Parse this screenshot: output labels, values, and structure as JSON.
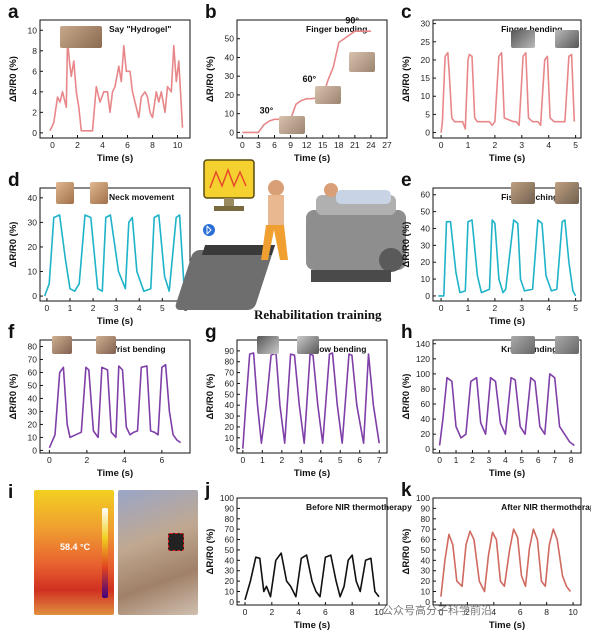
{
  "center": {
    "title": "Rehabilitation training"
  },
  "thermal": {
    "temperature": "58.4 °C"
  },
  "watermark": "公众号高分子科学前沿",
  "colors": {
    "red": "#e8878a",
    "teal": "#1fb3c9",
    "purple": "#7f3fa8",
    "black": "#111111",
    "brick": "#d0695f"
  },
  "chart_data": [
    {
      "id": "a",
      "letter": "a",
      "type": "line",
      "color": "red",
      "title": "Say \"Hydrogel\"",
      "xlabel": "Time (s)",
      "ylabel": "ΔR/R0 (%)",
      "xlim": [
        -1,
        11
      ],
      "ylim": [
        -0.5,
        11
      ],
      "xticks": [
        0,
        2,
        4,
        6,
        8,
        10
      ],
      "yticks": [
        0,
        2,
        4,
        6,
        8,
        10
      ],
      "x": [
        -0.2,
        0.1,
        0.4,
        0.6,
        0.8,
        1.1,
        1.2,
        1.35,
        1.5,
        1.7,
        1.9,
        2.1,
        2.3,
        3.2,
        3.5,
        3.8,
        4.1,
        4.4,
        4.6,
        4.8,
        5.0,
        5.3,
        5.5,
        5.7,
        5.9,
        6.2,
        6.4,
        6.6,
        6.9,
        7.1,
        7.4,
        7.6,
        7.8,
        8.0,
        8.3,
        8.5,
        8.7,
        9.0,
        9.2,
        9.5,
        9.7,
        9.9,
        10.1,
        10.4
      ],
      "y": [
        0.2,
        1,
        3.5,
        3,
        4,
        2.5,
        9,
        7,
        5.5,
        7,
        4,
        2.5,
        0.2,
        0.2,
        4.5,
        3,
        4,
        4,
        2,
        4,
        4.5,
        6.5,
        5,
        8.5,
        6,
        6,
        4,
        3,
        1.5,
        3.5,
        4,
        3.5,
        2,
        1.5,
        4,
        3,
        4,
        2,
        4.5,
        4,
        8.5,
        5,
        7,
        0.5
      ]
    },
    {
      "id": "b",
      "letter": "b",
      "type": "line",
      "color": "red",
      "title": "Finger bending",
      "xlabel": "Time (s)",
      "ylabel": "ΔR/R0 (%)",
      "xlim": [
        -1,
        27
      ],
      "ylim": [
        -3,
        60
      ],
      "xticks": [
        0,
        3,
        6,
        9,
        12,
        15,
        18,
        21,
        24,
        27
      ],
      "yticks": [
        0,
        10,
        20,
        30,
        40,
        50
      ],
      "x": [
        0,
        3,
        4,
        5,
        6,
        9,
        10,
        11,
        12,
        13,
        15,
        16,
        17,
        18,
        20,
        21,
        24
      ],
      "y": [
        0,
        0,
        4,
        6,
        7,
        7,
        15,
        17,
        18,
        18,
        19,
        28,
        35,
        48,
        52,
        54,
        54
      ],
      "annotations": [
        "30°",
        "60°",
        "90°"
      ]
    },
    {
      "id": "c",
      "letter": "c",
      "type": "line",
      "color": "red",
      "title": "Finger bending",
      "xlabel": "Time (s)",
      "ylabel": "ΔR/R0 (%)",
      "xlim": [
        -0.3,
        5.2
      ],
      "ylim": [
        -1.5,
        31
      ],
      "xticks": [
        0,
        1,
        2,
        3,
        4,
        5
      ],
      "yticks": [
        0,
        5,
        10,
        15,
        20,
        25,
        30
      ],
      "x": [
        0,
        0.05,
        0.15,
        0.25,
        0.3,
        0.4,
        0.5,
        0.6,
        0.8,
        0.9,
        1.0,
        1.05,
        1.15,
        1.25,
        1.35,
        1.6,
        1.8,
        1.9,
        2.0,
        2.15,
        2.25,
        2.35,
        2.7,
        2.8,
        2.9,
        3.05,
        3.15,
        3.25,
        3.4,
        3.6,
        3.7,
        3.85,
        3.95,
        4.05,
        4.2,
        4.4,
        4.6,
        4.75,
        4.85,
        4.95
      ],
      "y": [
        0,
        3,
        21,
        22,
        17,
        4,
        3,
        3,
        3,
        1,
        20,
        21.5,
        21,
        4,
        3,
        3,
        3,
        2,
        3,
        21,
        22,
        4,
        3,
        3,
        2,
        21,
        22,
        4,
        3,
        3,
        2,
        20,
        21,
        4,
        3,
        3,
        3,
        21,
        21.5,
        3
      ]
    },
    {
      "id": "d",
      "letter": "d",
      "type": "line",
      "color": "teal",
      "title": "Neck movement",
      "xlabel": "Time (s)",
      "ylabel": "ΔR/R0 (%)",
      "xlim": [
        -0.3,
        6.2
      ],
      "ylim": [
        -2,
        44
      ],
      "xticks": [
        0,
        1,
        2,
        3,
        4,
        5,
        6
      ],
      "yticks": [
        0,
        10,
        20,
        30,
        40
      ],
      "x": [
        -0.1,
        0.1,
        0.3,
        0.55,
        0.8,
        1.0,
        1.2,
        1.4,
        1.65,
        1.9,
        2.2,
        2.4,
        2.55,
        2.75,
        3.1,
        3.4,
        3.55,
        3.7,
        3.9,
        4.2,
        4.5,
        4.65,
        4.85,
        5.1,
        5.3,
        5.6,
        5.75,
        5.95
      ],
      "y": [
        0,
        5,
        32,
        33,
        15,
        3,
        2,
        5,
        33,
        32,
        3,
        2,
        32,
        33,
        10,
        3,
        30,
        32,
        10,
        2,
        3,
        32,
        33,
        8,
        2,
        32,
        33,
        3
      ]
    },
    {
      "id": "e",
      "letter": "e",
      "type": "line",
      "color": "teal",
      "title": "Fist clenching",
      "xlabel": "Time (s)",
      "ylabel": "ΔR/R0 (%)",
      "xlim": [
        -0.3,
        5.2
      ],
      "ylim": [
        -3,
        64
      ],
      "xticks": [
        0,
        1,
        2,
        3,
        4,
        5
      ],
      "yticks": [
        0,
        10,
        20,
        30,
        40,
        50,
        60
      ],
      "x": [
        -0.1,
        0.1,
        0.2,
        0.35,
        0.55,
        0.7,
        0.9,
        1.0,
        1.15,
        1.35,
        1.5,
        1.8,
        1.9,
        2.0,
        2.15,
        2.3,
        2.4,
        2.7,
        2.85,
        2.95,
        3.1,
        3.4,
        3.6,
        3.75,
        3.9,
        4.1,
        4.3,
        4.5,
        4.6,
        4.75,
        4.9,
        5.0
      ],
      "y": [
        0,
        0,
        44,
        44,
        14,
        2,
        3,
        44,
        45,
        12,
        2,
        4,
        45,
        43,
        10,
        2,
        4,
        45,
        43,
        10,
        3,
        4,
        45,
        43,
        12,
        3,
        4,
        44,
        45,
        20,
        3,
        0
      ]
    },
    {
      "id": "f",
      "letter": "f",
      "type": "line",
      "color": "purple",
      "title": "Wrist bending",
      "xlabel": "Time (s)",
      "ylabel": "ΔR/R0 (%)",
      "xlim": [
        -0.5,
        7.5
      ],
      "ylim": [
        -2,
        85
      ],
      "xticks": [
        0,
        2,
        4,
        6
      ],
      "yticks": [
        0,
        10,
        20,
        30,
        40,
        50,
        60,
        70,
        80
      ],
      "x": [
        0,
        0.3,
        0.55,
        0.75,
        0.95,
        1.1,
        1.4,
        1.7,
        1.95,
        2.1,
        2.35,
        2.6,
        2.8,
        3.1,
        3.3,
        3.55,
        3.7,
        3.9,
        4.1,
        4.3,
        4.5,
        4.7,
        4.9,
        5.2,
        5.4,
        5.6,
        5.8,
        6.0,
        6.2,
        6.4,
        6.6,
        6.8,
        7.0
      ],
      "y": [
        2,
        12,
        60,
        64,
        20,
        10,
        12,
        14,
        64,
        62,
        15,
        10,
        64,
        62,
        14,
        10,
        65,
        62,
        18,
        12,
        14,
        15,
        64,
        65,
        15,
        14,
        12,
        64,
        66,
        30,
        12,
        8,
        6
      ]
    },
    {
      "id": "g",
      "letter": "g",
      "type": "line",
      "color": "purple",
      "title": "Elbow bending",
      "xlabel": "Time (s)",
      "ylabel": "ΔR/R0 (%)",
      "xlim": [
        -0.3,
        7.4
      ],
      "ylim": [
        -4,
        100
      ],
      "xticks": [
        0,
        1,
        2,
        3,
        4,
        5,
        6,
        7
      ],
      "yticks": [
        0,
        10,
        20,
        30,
        40,
        50,
        60,
        70,
        80,
        90
      ],
      "x": [
        0,
        0.15,
        0.35,
        0.55,
        0.75,
        0.95,
        1.2,
        1.45,
        1.7,
        1.9,
        2.15,
        2.45,
        2.65,
        2.9,
        3.15,
        3.45,
        3.6,
        3.85,
        4.1,
        4.45,
        4.6,
        4.85,
        5.1,
        5.45,
        5.6,
        5.85,
        6.2,
        6.45,
        6.7,
        7.0
      ],
      "y": [
        0,
        40,
        87,
        88,
        40,
        5,
        40,
        86,
        88,
        40,
        5,
        87,
        86,
        40,
        5,
        87,
        86,
        40,
        5,
        87,
        88,
        40,
        5,
        87,
        86,
        40,
        5,
        87,
        40,
        5
      ]
    },
    {
      "id": "h",
      "letter": "h",
      "type": "line",
      "color": "purple",
      "title": "Knee bending",
      "xlabel": "Time (s)",
      "ylabel": "ΔR/R0 (%)",
      "xlim": [
        -0.4,
        8.6
      ],
      "ylim": [
        -5,
        145
      ],
      "xticks": [
        0,
        1,
        2,
        3,
        4,
        5,
        6,
        7,
        8
      ],
      "yticks": [
        0,
        20,
        40,
        60,
        80,
        100,
        120,
        140
      ],
      "x": [
        0,
        0.2,
        0.45,
        0.75,
        1.0,
        1.3,
        1.6,
        1.9,
        2.25,
        2.5,
        2.8,
        3.1,
        3.4,
        3.7,
        4.0,
        4.35,
        4.6,
        4.9,
        5.2,
        5.55,
        5.8,
        6.1,
        6.4,
        6.7,
        7.0,
        7.3,
        7.6,
        7.9,
        8.2
      ],
      "y": [
        5,
        40,
        95,
        90,
        30,
        15,
        20,
        90,
        95,
        35,
        20,
        95,
        90,
        35,
        20,
        95,
        92,
        30,
        20,
        95,
        90,
        30,
        20,
        100,
        95,
        30,
        20,
        10,
        5
      ]
    },
    {
      "id": "j",
      "letter": "j",
      "type": "line",
      "color": "black",
      "title": "Before NIR thermotherapy",
      "xlabel": "Time (s)",
      "ylabel": "ΔR/R0 (%)",
      "xlim": [
        -0.6,
        10.6
      ],
      "ylim": [
        -3,
        100
      ],
      "xticks": [
        0,
        2,
        4,
        6,
        8,
        10
      ],
      "yticks": [
        0,
        10,
        20,
        30,
        40,
        50,
        60,
        70,
        80,
        90,
        100
      ],
      "x": [
        0,
        0.4,
        0.8,
        1.1,
        1.4,
        1.6,
        1.9,
        2.3,
        2.7,
        3.1,
        3.4,
        3.8,
        4.2,
        4.6,
        5.0,
        5.3,
        5.6,
        6.0,
        6.4,
        6.8,
        7.1,
        7.4,
        7.7,
        8.0,
        8.3,
        8.6,
        9.0,
        9.4,
        9.7,
        10.0
      ],
      "y": [
        2,
        20,
        43,
        42,
        10,
        15,
        5,
        40,
        47,
        20,
        15,
        5,
        42,
        45,
        20,
        10,
        5,
        43,
        45,
        20,
        5,
        15,
        40,
        45,
        20,
        10,
        40,
        42,
        10,
        5
      ]
    },
    {
      "id": "k",
      "letter": "k",
      "type": "line",
      "color": "brick",
      "title": "After NIR thermotherapy",
      "xlabel": "Time (s)",
      "ylabel": "ΔR/R0 (%)",
      "xlim": [
        -0.6,
        10.6
      ],
      "ylim": [
        -3,
        100
      ],
      "xticks": [
        0,
        2,
        4,
        6,
        8,
        10
      ],
      "yticks": [
        0,
        10,
        20,
        30,
        40,
        50,
        60,
        70,
        80,
        90,
        100
      ],
      "x": [
        0,
        0.3,
        0.6,
        0.9,
        1.2,
        1.6,
        1.9,
        2.2,
        2.5,
        2.9,
        3.3,
        3.6,
        3.9,
        4.2,
        4.5,
        4.8,
        5.2,
        5.5,
        5.8,
        6.1,
        6.4,
        6.7,
        7.0,
        7.3,
        7.6,
        7.9,
        8.2,
        8.5,
        8.8,
        9.2,
        9.5,
        9.8
      ],
      "y": [
        5,
        40,
        65,
        55,
        20,
        15,
        55,
        68,
        60,
        20,
        10,
        45,
        67,
        60,
        20,
        15,
        50,
        70,
        62,
        25,
        15,
        52,
        70,
        60,
        20,
        15,
        55,
        70,
        60,
        25,
        15,
        10
      ]
    }
  ]
}
